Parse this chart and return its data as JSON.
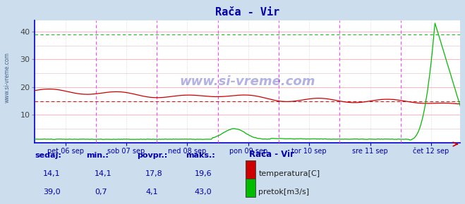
{
  "title": "Rača - Vir",
  "title_color": "#0000aa",
  "bg_color": "#ccdded",
  "plot_bg_color": "#ffffff",
  "ylim": [
    0,
    44
  ],
  "yticks": [
    10,
    20,
    30,
    40
  ],
  "num_points": 336,
  "temp_color": "#cc0000",
  "flow_color": "#00bb00",
  "vline_color": "#ff44ff",
  "xlabel_color": "#0000aa",
  "watermark_color": "#0000aa",
  "legend_title": "Rača - Vir",
  "legend_title_color": "#0000aa",
  "legend_label1": "temperatura[C]",
  "legend_label2": "pretok[m3/s]",
  "table_labels": [
    "sedaj:",
    "min.:",
    "povpr.:",
    "maks.:"
  ],
  "table_temp": [
    "14,1",
    "14,1",
    "17,8",
    "19,6"
  ],
  "table_flow": [
    "39,0",
    "0,7",
    "4,1",
    "43,0"
  ],
  "xticklabels": [
    "pet 06 sep",
    "sob 07 sep",
    "ned 08 sep",
    "pon 09 sep",
    "tor 10 sep",
    "sre 11 sep",
    "čet 12 sep"
  ],
  "xtick_positions": [
    24,
    72,
    120,
    168,
    216,
    264,
    312
  ],
  "vline_positions": [
    48,
    96,
    144,
    192,
    240,
    288
  ],
  "dashed_line_temp": 15.0,
  "dashed_line_flow": 39.0,
  "minor_grid_color": "#ddbbbb",
  "major_grid_color": "#ffaaaa",
  "spine_color": "#0000cc",
  "left_label": "www.si-vreme.com"
}
